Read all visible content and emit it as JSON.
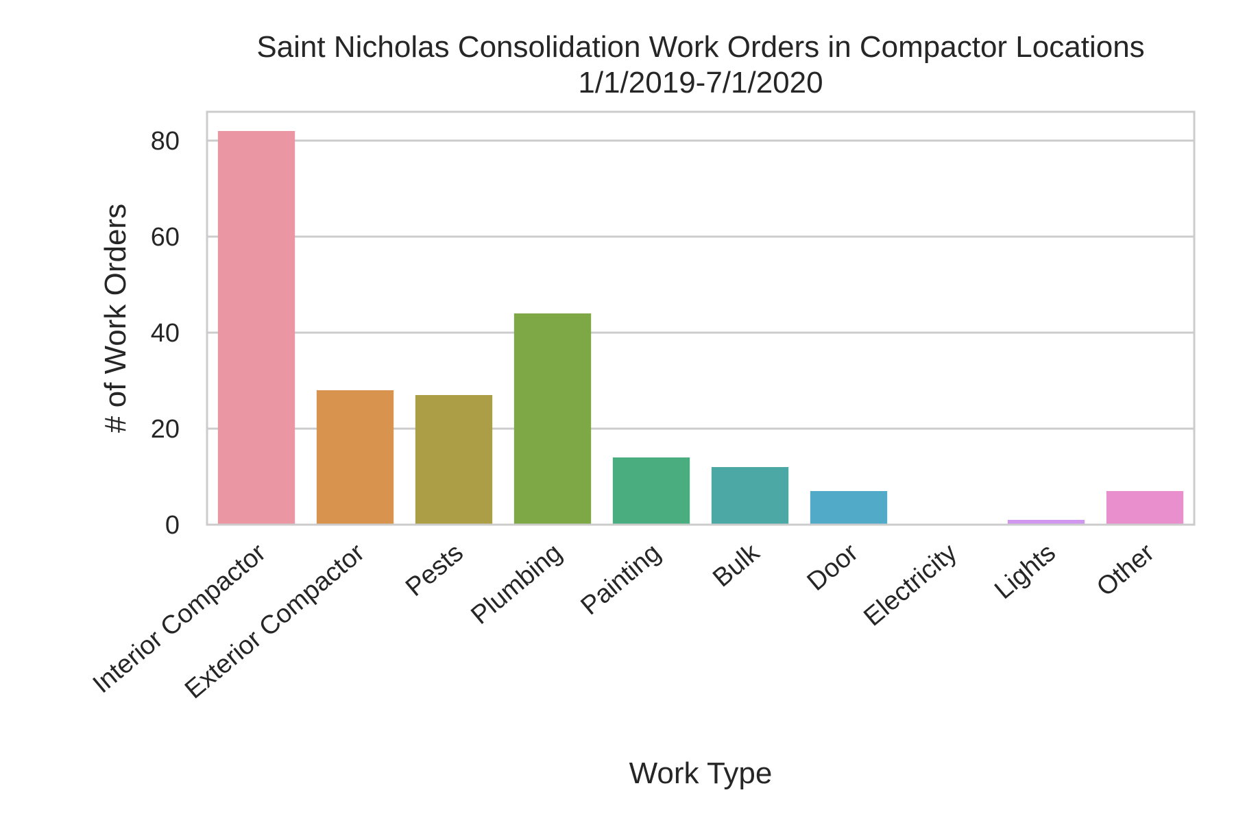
{
  "chart_data": {
    "type": "bar",
    "title": "Saint Nicholas Consolidation Work Orders in Compactor Locations",
    "subtitle": "1/1/2019-7/1/2020",
    "xlabel": "Work Type",
    "ylabel": "# of Work Orders",
    "categories": [
      "Interior Compactor",
      "Exterior Compactor",
      "Pests",
      "Plumbing",
      "Painting",
      "Bulk",
      "Door",
      "Electricity",
      "Lights",
      "Other"
    ],
    "values": [
      82,
      28,
      27,
      44,
      14,
      12,
      7,
      0,
      1,
      7
    ],
    "colors": [
      "#ea96a3",
      "#d8944e",
      "#ab9e47",
      "#7ea846",
      "#4aad7f",
      "#4ca8a4",
      "#51abc8",
      "#a2a4f4",
      "#d196ed",
      "#ea8fcd"
    ],
    "yticks": [
      "0",
      "20",
      "40",
      "60",
      "80"
    ],
    "ylim": [
      0,
      86
    ],
    "grid": "horizontal",
    "legend": "none"
  }
}
